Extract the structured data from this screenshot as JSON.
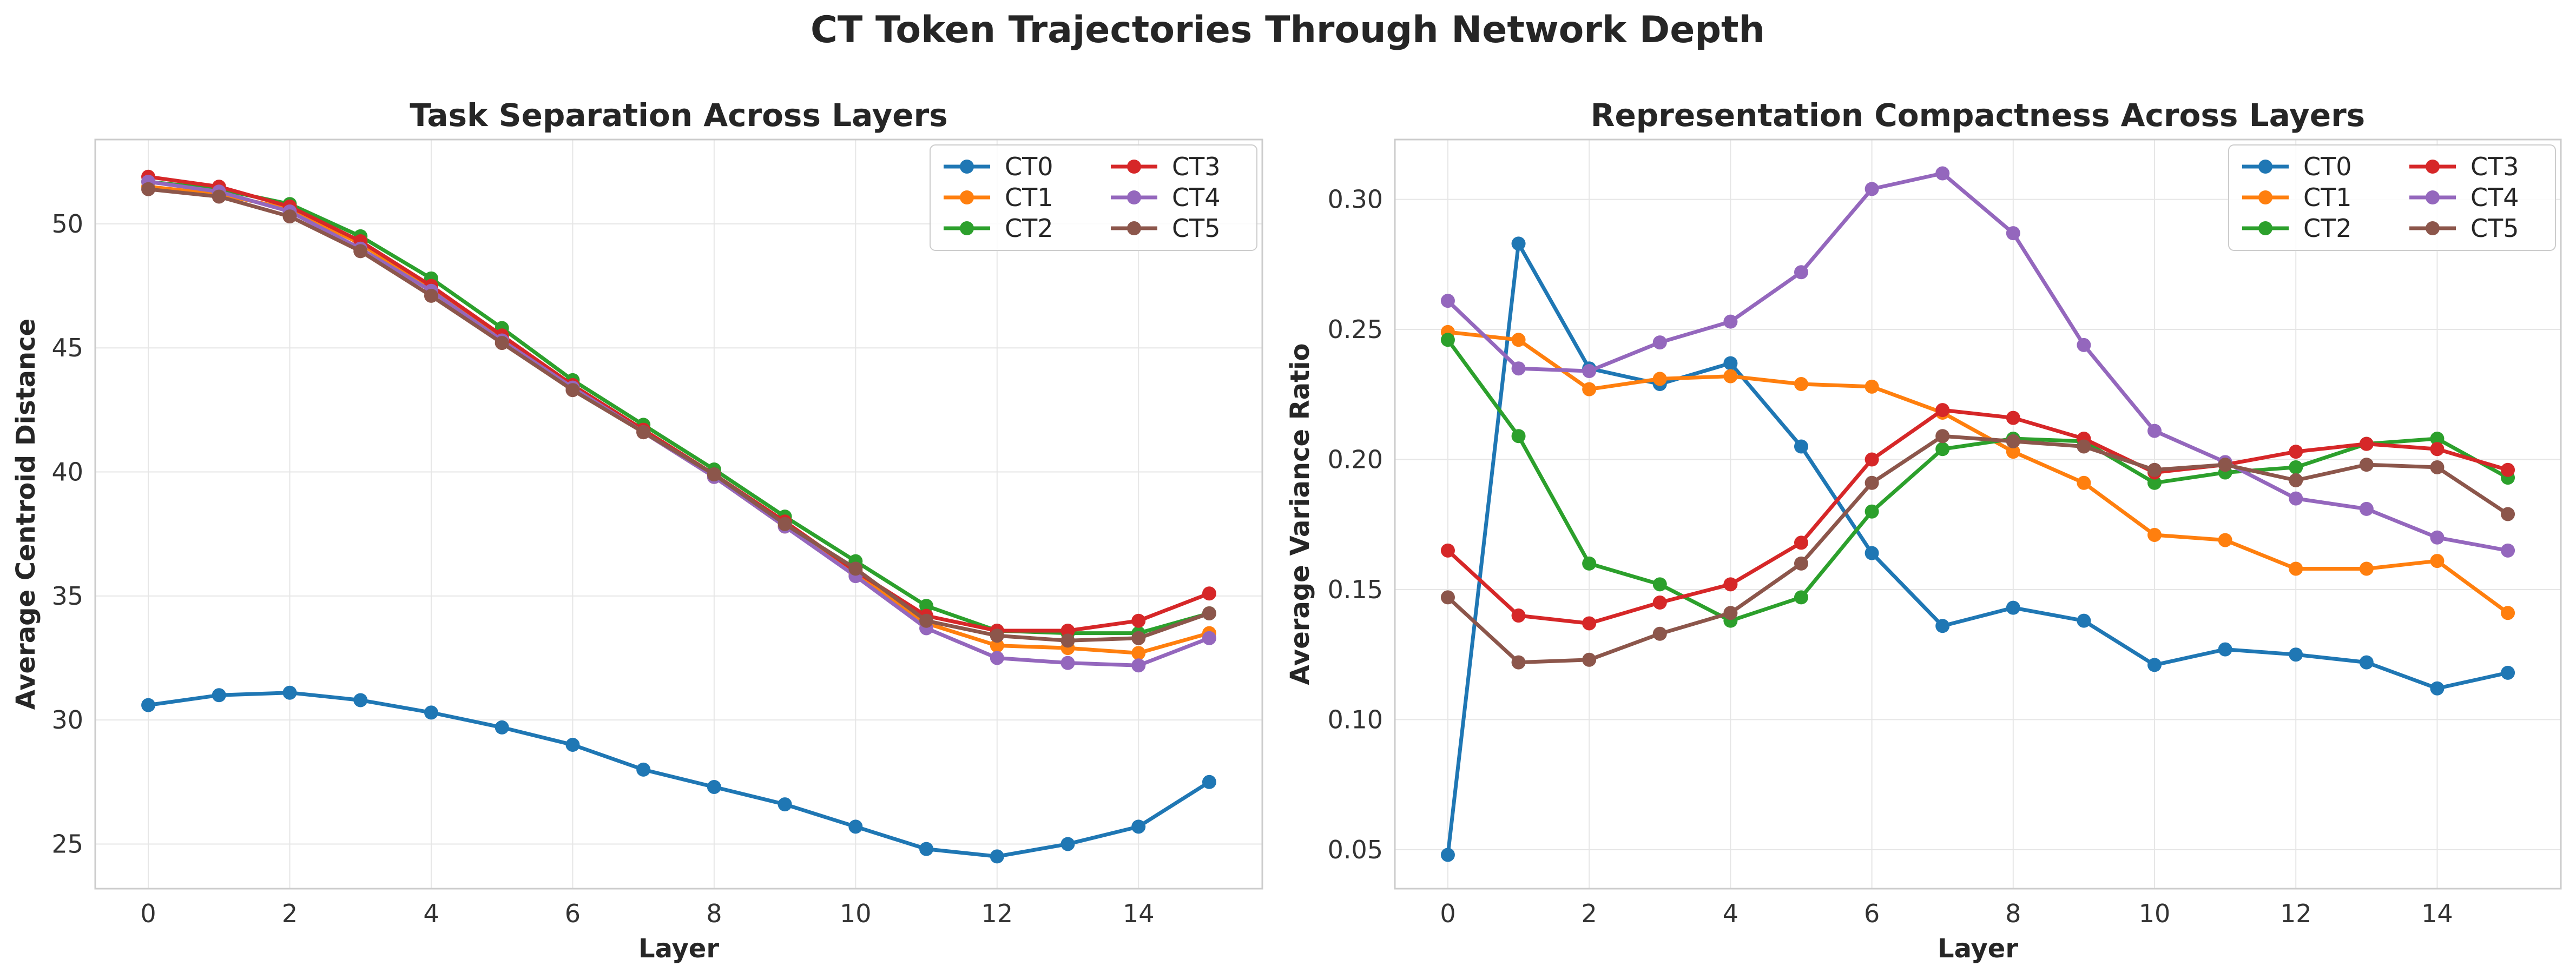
{
  "figure_title": "CT Token Trajectories Through Network Depth",
  "colors": {
    "CT0": "#1f77b4",
    "CT1": "#ff7f0e",
    "CT2": "#2ca02c",
    "CT3": "#d62728",
    "CT4": "#9467bd",
    "CT5": "#8c564b"
  },
  "chart_data": [
    {
      "type": "line",
      "title": "Task Separation Across Layers",
      "xlabel": "Layer",
      "ylabel": "Average Centroid Distance",
      "x": [
        0,
        1,
        2,
        3,
        4,
        5,
        6,
        7,
        8,
        9,
        10,
        11,
        12,
        13,
        14,
        15
      ],
      "xlim": [
        -0.75,
        15.75
      ],
      "ylim": [
        23.2,
        53.4
      ],
      "xticks": [
        0,
        2,
        4,
        6,
        8,
        10,
        12,
        14
      ],
      "yticks": [
        25,
        30,
        35,
        40,
        45,
        50
      ],
      "grid": true,
      "legend": "upper right, 2 columns",
      "series": [
        {
          "name": "CT0",
          "values": [
            30.6,
            31.0,
            31.1,
            30.8,
            30.3,
            29.7,
            29.0,
            28.0,
            27.3,
            26.6,
            25.7,
            24.8,
            24.5,
            25.0,
            25.7,
            27.5
          ]
        },
        {
          "name": "CT1",
          "values": [
            51.5,
            51.2,
            50.6,
            49.2,
            47.4,
            45.4,
            43.4,
            41.6,
            39.8,
            37.8,
            35.9,
            33.9,
            33.0,
            32.9,
            32.7,
            33.5
          ]
        },
        {
          "name": "CT2",
          "values": [
            51.7,
            51.4,
            50.8,
            49.5,
            47.8,
            45.8,
            43.7,
            41.9,
            40.1,
            38.2,
            36.4,
            34.6,
            33.6,
            33.5,
            33.5,
            34.3
          ]
        },
        {
          "name": "CT3",
          "values": [
            51.9,
            51.5,
            50.7,
            49.3,
            47.5,
            45.5,
            43.5,
            41.7,
            39.9,
            38.0,
            36.0,
            34.2,
            33.6,
            33.6,
            34.0,
            35.1
          ]
        },
        {
          "name": "CT4",
          "values": [
            51.7,
            51.3,
            50.5,
            49.0,
            47.3,
            45.3,
            43.4,
            41.6,
            39.8,
            37.8,
            35.8,
            33.7,
            32.5,
            32.3,
            32.2,
            33.3
          ]
        },
        {
          "name": "CT5",
          "values": [
            51.4,
            51.1,
            50.3,
            48.9,
            47.1,
            45.2,
            43.3,
            41.6,
            39.9,
            37.9,
            36.1,
            34.0,
            33.4,
            33.2,
            33.3,
            34.3
          ]
        }
      ]
    },
    {
      "type": "line",
      "title": "Representation Compactness Across Layers",
      "xlabel": "Layer",
      "ylabel": "Average Variance Ratio",
      "x": [
        0,
        1,
        2,
        3,
        4,
        5,
        6,
        7,
        8,
        9,
        10,
        11,
        12,
        13,
        14,
        15
      ],
      "xlim": [
        -0.75,
        15.75
      ],
      "ylim": [
        0.035,
        0.323
      ],
      "xticks": [
        0,
        2,
        4,
        6,
        8,
        10,
        12,
        14
      ],
      "yticks": [
        0.05,
        0.1,
        0.15,
        0.2,
        0.25,
        0.3
      ],
      "grid": true,
      "legend": "upper right, 2 columns",
      "series": [
        {
          "name": "CT0",
          "values": [
            0.048,
            0.283,
            0.235,
            0.229,
            0.237,
            0.205,
            0.164,
            0.136,
            0.143,
            0.138,
            0.121,
            0.127,
            0.125,
            0.122,
            0.112,
            0.118
          ]
        },
        {
          "name": "CT1",
          "values": [
            0.249,
            0.246,
            0.227,
            0.231,
            0.232,
            0.229,
            0.228,
            0.218,
            0.203,
            0.191,
            0.171,
            0.169,
            0.158,
            0.158,
            0.161,
            0.141
          ]
        },
        {
          "name": "CT2",
          "values": [
            0.246,
            0.209,
            0.16,
            0.152,
            0.138,
            0.147,
            0.18,
            0.204,
            0.208,
            0.207,
            0.191,
            0.195,
            0.197,
            0.206,
            0.208,
            0.193
          ]
        },
        {
          "name": "CT3",
          "values": [
            0.165,
            0.14,
            0.137,
            0.145,
            0.152,
            0.168,
            0.2,
            0.219,
            0.216,
            0.208,
            0.195,
            0.198,
            0.203,
            0.206,
            0.204,
            0.196
          ]
        },
        {
          "name": "CT4",
          "values": [
            0.261,
            0.235,
            0.234,
            0.245,
            0.253,
            0.272,
            0.304,
            0.31,
            0.287,
            0.244,
            0.211,
            0.199,
            0.185,
            0.181,
            0.17,
            0.165
          ]
        },
        {
          "name": "CT5",
          "values": [
            0.147,
            0.122,
            0.123,
            0.133,
            0.141,
            0.16,
            0.191,
            0.209,
            0.207,
            0.205,
            0.196,
            0.198,
            0.192,
            0.198,
            0.197,
            0.179
          ]
        }
      ]
    }
  ]
}
